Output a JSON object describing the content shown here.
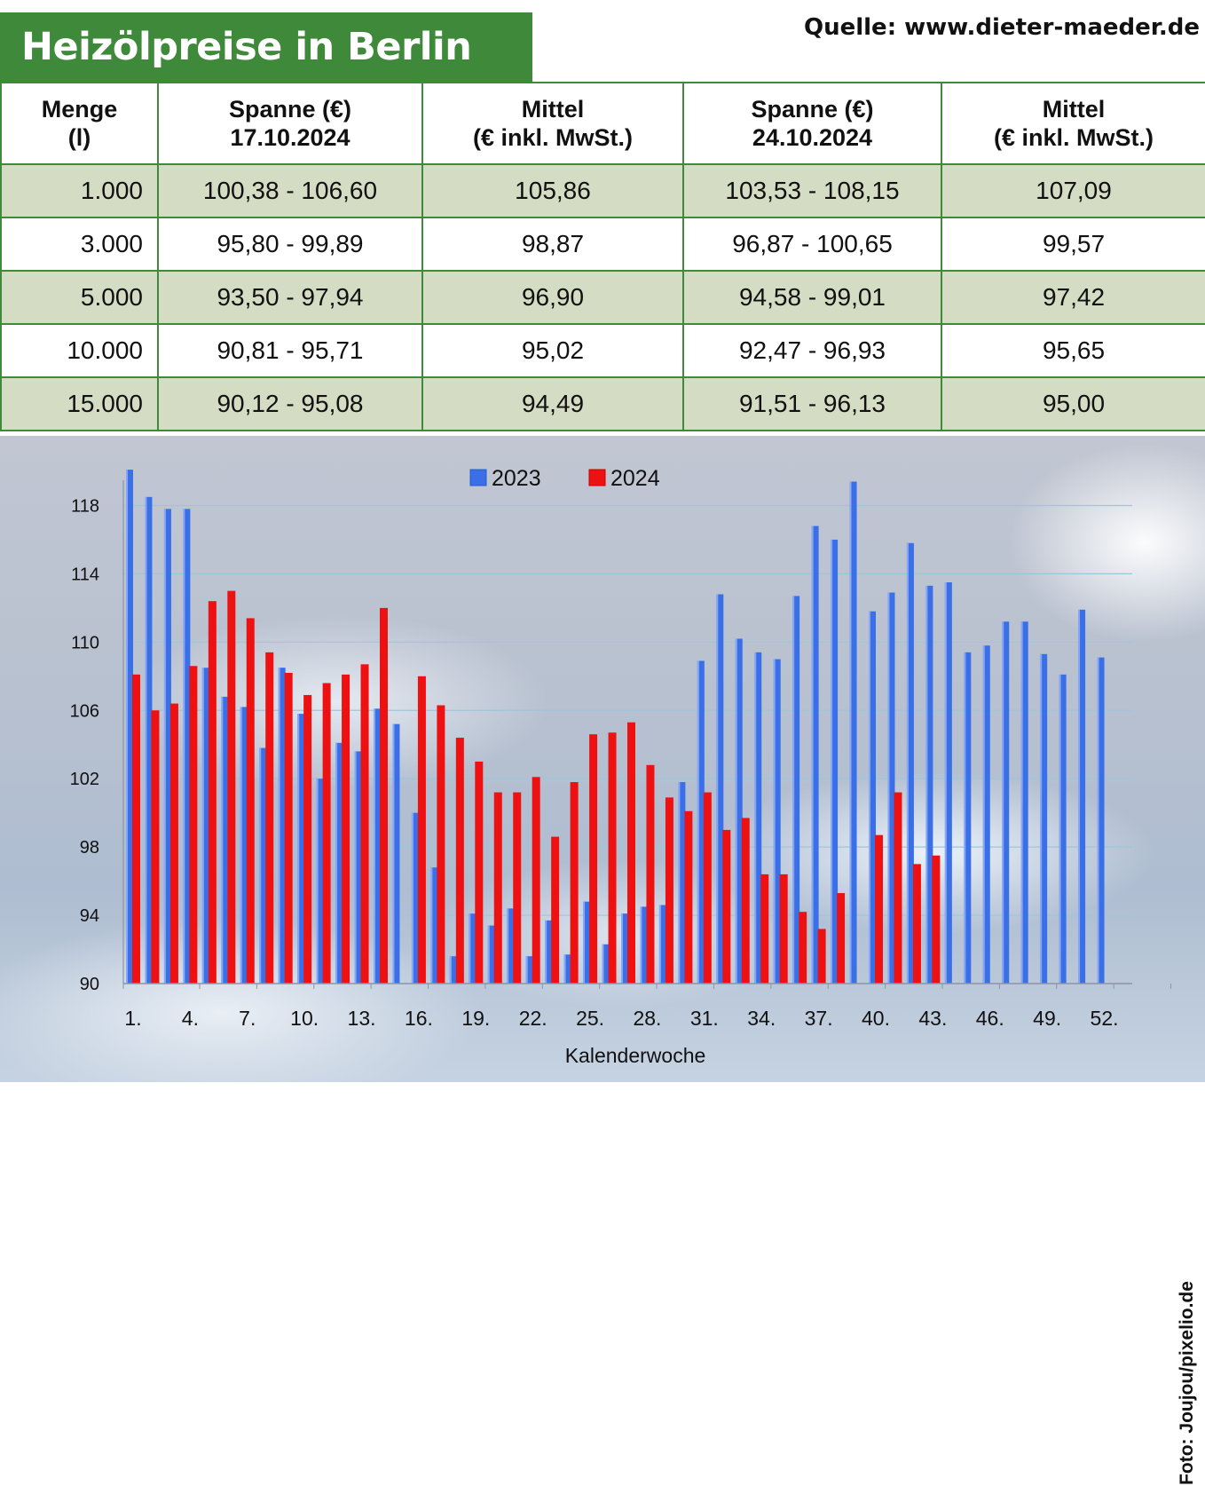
{
  "header": {
    "title": "Heizölpreise in Berlin",
    "source": "Quelle: www.dieter-maeder.de"
  },
  "table": {
    "columns": [
      {
        "line1": "Menge",
        "line2": "(l)"
      },
      {
        "line1": "Spanne (€)",
        "line2": "17.10.2024"
      },
      {
        "line1": "Mittel",
        "line2": "(€ inkl. MwSt.)"
      },
      {
        "line1": "Spanne (€)",
        "line2": "24.10.2024"
      },
      {
        "line1": "Mittel",
        "line2": "(€ inkl. MwSt.)"
      }
    ],
    "rows": [
      [
        "1.000",
        "100,38 - 106,60",
        "105,86",
        "103,53 - 108,15",
        "107,09"
      ],
      [
        "3.000",
        "95,80 - 99,89",
        "98,87",
        "96,87 - 100,65",
        "99,57"
      ],
      [
        "5.000",
        "93,50 - 97,94",
        "96,90",
        "94,58 - 99,01",
        "97,42"
      ],
      [
        "10.000",
        "90,81 - 95,71",
        "95,02",
        "92,47 - 96,93",
        "95,65"
      ],
      [
        "15.000",
        "90,12 - 95,08",
        "94,49",
        "91,51 - 96,13",
        "95,00"
      ]
    ]
  },
  "chart_data": {
    "type": "bar",
    "title": "",
    "xlabel": "Kalenderwoche",
    "ylabel": "",
    "ylim": [
      90,
      120
    ],
    "yticks": [
      90,
      94,
      98,
      102,
      106,
      110,
      114,
      118
    ],
    "x_tick_labels": [
      "1.",
      "4.",
      "7.",
      "10.",
      "13.",
      "16.",
      "19.",
      "22.",
      "25.",
      "28.",
      "31.",
      "34.",
      "37.",
      "40.",
      "43.",
      "46.",
      "49.",
      "52."
    ],
    "x_tick_weeks": [
      1,
      4,
      7,
      10,
      13,
      16,
      19,
      22,
      25,
      28,
      31,
      34,
      37,
      40,
      43,
      46,
      49,
      52
    ],
    "grid": true,
    "legend_position": "top-center",
    "series": [
      {
        "name": "2023",
        "color": "#3a6fe6",
        "weeks": [
          1,
          2,
          3,
          4,
          5,
          6,
          7,
          8,
          9,
          10,
          11,
          12,
          13,
          14,
          15,
          16,
          17,
          18,
          19,
          20,
          21,
          22,
          23,
          24,
          25,
          26,
          27,
          28,
          29,
          30,
          31,
          32,
          33,
          34,
          35,
          36,
          37,
          38,
          39,
          40,
          41,
          42,
          43,
          44,
          45,
          46,
          47,
          48,
          49,
          50,
          51,
          52
        ],
        "values": [
          120.1,
          118.5,
          117.8,
          117.8,
          108.5,
          106.8,
          106.2,
          103.8,
          108.5,
          105.8,
          102.0,
          104.1,
          103.6,
          106.1,
          105.2,
          100.0,
          96.8,
          91.6,
          94.1,
          93.4,
          94.4,
          91.6,
          93.7,
          91.7,
          94.8,
          92.3,
          94.1,
          94.5,
          94.6,
          101.8,
          108.9,
          112.8,
          110.2,
          109.4,
          109.0,
          112.7,
          116.8,
          116.0,
          119.4,
          111.8,
          112.9,
          115.8,
          113.3,
          113.5,
          109.4,
          109.8,
          111.2,
          111.2,
          109.3,
          108.1,
          111.9,
          109.1
        ]
      },
      {
        "name": "2024",
        "color": "#ee1111",
        "weeks": [
          1,
          2,
          3,
          4,
          5,
          6,
          7,
          8,
          9,
          10,
          11,
          12,
          13,
          14,
          15,
          16,
          17,
          18,
          19,
          20,
          21,
          22,
          23,
          24,
          25,
          26,
          27,
          28,
          29,
          30,
          31,
          32,
          33,
          34,
          35,
          36,
          37,
          38,
          39,
          40,
          41,
          42,
          43
        ],
        "values": [
          108.1,
          106.0,
          106.4,
          108.6,
          112.4,
          113.0,
          111.4,
          109.4,
          108.2,
          106.9,
          107.6,
          108.1,
          108.7,
          112.0,
          null,
          108.0,
          106.3,
          104.4,
          103.0,
          101.2,
          101.2,
          102.1,
          98.6,
          101.8,
          104.6,
          104.7,
          105.3,
          102.8,
          100.9,
          100.1,
          101.2,
          99.0,
          99.7,
          96.4,
          96.4,
          94.2,
          93.2,
          95.3,
          null,
          98.7,
          101.2,
          97.0,
          97.5
        ]
      }
    ]
  },
  "photo_credit": "Foto: Joujou/pixelio.de"
}
